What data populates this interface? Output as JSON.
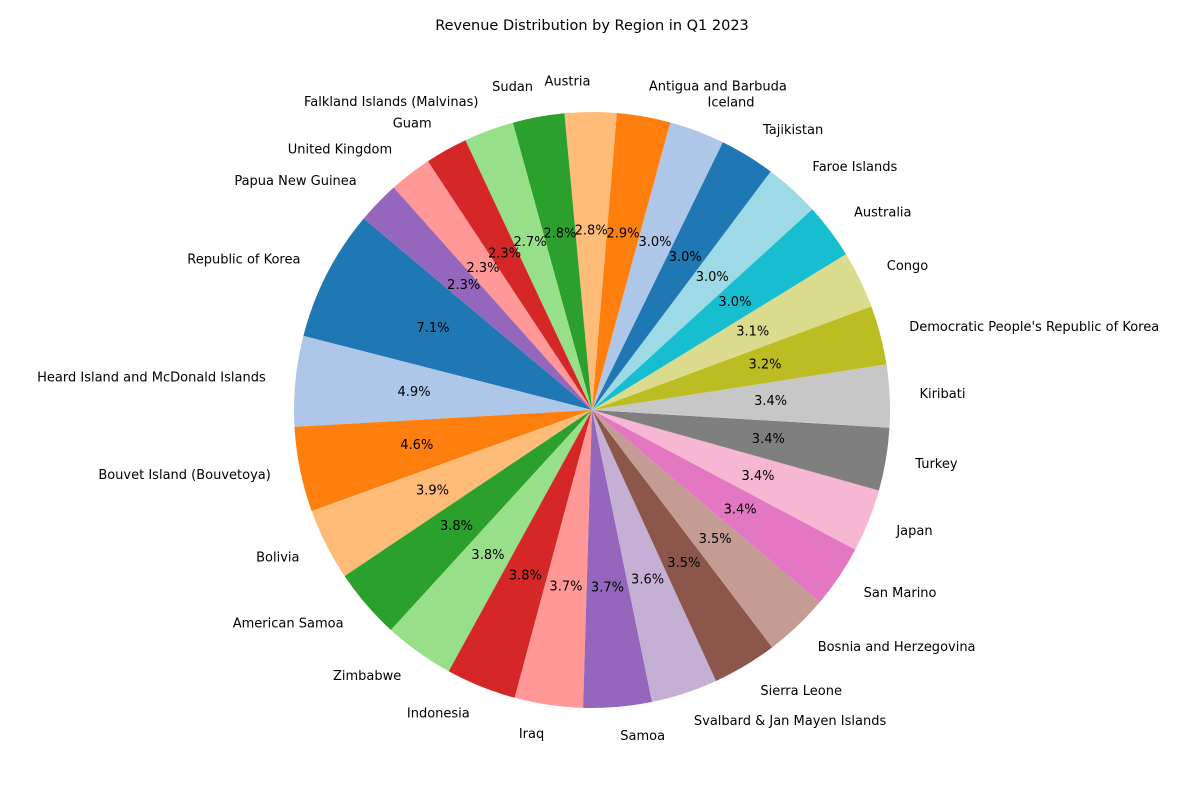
{
  "chart_data": {
    "type": "pie",
    "title": "Revenue Distribution by Region in Q1 2023",
    "start_angle_deg": 140,
    "direction": "counterclockwise",
    "slices": [
      {
        "label": "Republic of Korea",
        "value": 7.1,
        "pct_label": "7.1%",
        "color": "#1f77b4"
      },
      {
        "label": "Heard Island and McDonald Islands",
        "value": 4.9,
        "pct_label": "4.9%",
        "color": "#aec7e8"
      },
      {
        "label": "Bouvet Island (Bouvetoya)",
        "value": 4.6,
        "pct_label": "4.6%",
        "color": "#ff7f0e"
      },
      {
        "label": "Bolivia",
        "value": 3.9,
        "pct_label": "3.9%",
        "color": "#ffbb78"
      },
      {
        "label": "American Samoa",
        "value": 3.8,
        "pct_label": "3.8%",
        "color": "#2ca02c"
      },
      {
        "label": "Zimbabwe",
        "value": 3.8,
        "pct_label": "3.8%",
        "color": "#98df8a"
      },
      {
        "label": "Indonesia",
        "value": 3.8,
        "pct_label": "3.8%",
        "color": "#d62728"
      },
      {
        "label": "Iraq",
        "value": 3.7,
        "pct_label": "3.7%",
        "color": "#ff9896"
      },
      {
        "label": "Samoa",
        "value": 3.7,
        "pct_label": "3.7%",
        "color": "#9467bd"
      },
      {
        "label": "Svalbard & Jan Mayen Islands",
        "value": 3.6,
        "pct_label": "3.6%",
        "color": "#c5b0d5"
      },
      {
        "label": "Sierra Leone",
        "value": 3.5,
        "pct_label": "3.5%",
        "color": "#8c564b"
      },
      {
        "label": "Bosnia and Herzegovina",
        "value": 3.5,
        "pct_label": "3.5%",
        "color": "#c49c94"
      },
      {
        "label": "San Marino",
        "value": 3.4,
        "pct_label": "3.4%",
        "color": "#e377c2"
      },
      {
        "label": "Japan",
        "value": 3.4,
        "pct_label": "3.4%",
        "color": "#f7b6d2"
      },
      {
        "label": "Turkey",
        "value": 3.4,
        "pct_label": "3.4%",
        "color": "#7f7f7f"
      },
      {
        "label": "Kiribati",
        "value": 3.4,
        "pct_label": "3.4%",
        "color": "#c7c7c7"
      },
      {
        "label": "Democratic People's Republic of Korea",
        "value": 3.2,
        "pct_label": "3.2%",
        "color": "#bcbd22"
      },
      {
        "label": "Congo",
        "value": 3.1,
        "pct_label": "3.1%",
        "color": "#dbdb8d"
      },
      {
        "label": "Australia",
        "value": 3.0,
        "pct_label": "3.0%",
        "color": "#17becf"
      },
      {
        "label": "Faroe Islands",
        "value": 3.0,
        "pct_label": "3.0%",
        "color": "#9edae5"
      },
      {
        "label": "Tajikistan",
        "value": 3.0,
        "pct_label": "3.0%",
        "color": "#1f77b4"
      },
      {
        "label": "Iceland",
        "value": 3.0,
        "pct_label": "3.0%",
        "color": "#aec7e8"
      },
      {
        "label": "Antigua and Barbuda",
        "value": 2.9,
        "pct_label": "2.9%",
        "color": "#ff7f0e"
      },
      {
        "label": "Austria",
        "value": 2.8,
        "pct_label": "2.8%",
        "color": "#ffbb78"
      },
      {
        "label": "Sudan",
        "value": 2.8,
        "pct_label": "2.8%",
        "color": "#2ca02c"
      },
      {
        "label": "Falkland Islands (Malvinas)",
        "value": 2.7,
        "pct_label": "2.7%",
        "color": "#98df8a"
      },
      {
        "label": "Guam",
        "value": 2.3,
        "pct_label": "2.3%",
        "color": "#d62728"
      },
      {
        "label": "United Kingdom",
        "value": 2.3,
        "pct_label": "2.3%",
        "color": "#ff9896"
      },
      {
        "label": "Papua New Guinea",
        "value": 2.3,
        "pct_label": "2.3%",
        "color": "#9467bd"
      }
    ]
  }
}
